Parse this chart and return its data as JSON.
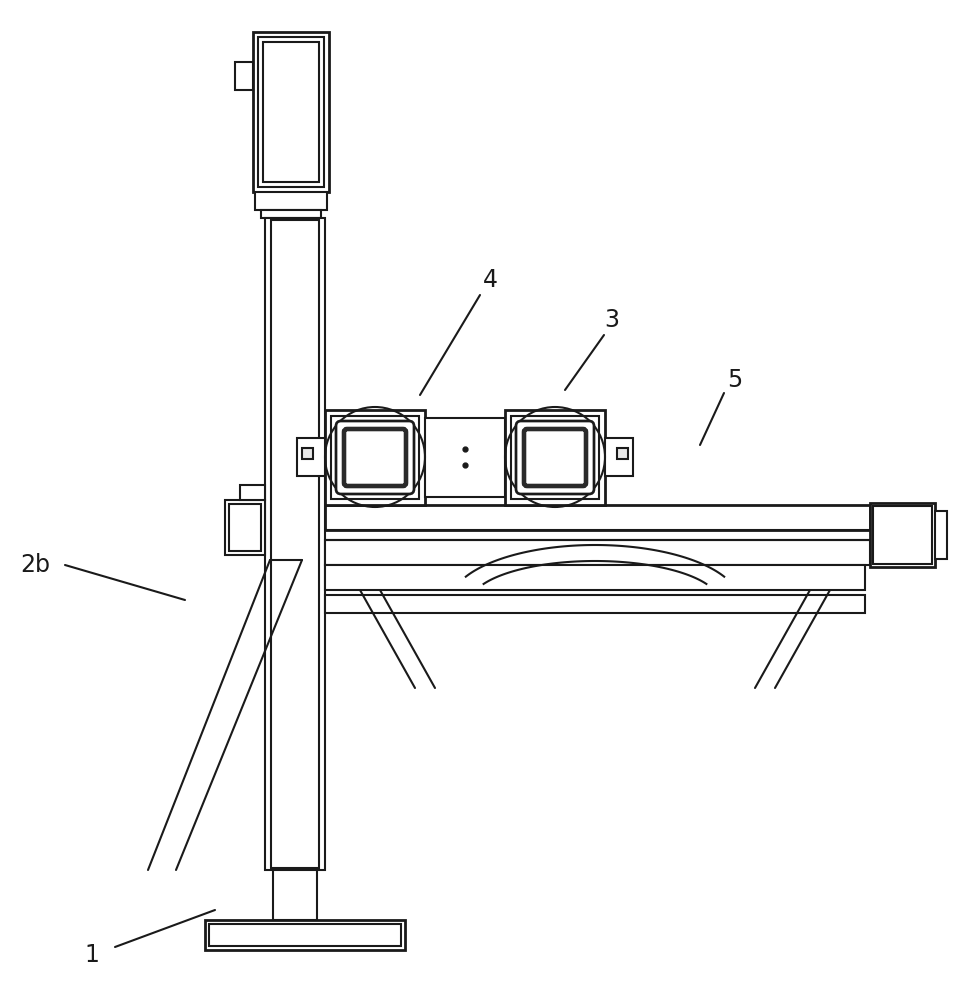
{
  "bg_color": "#ffffff",
  "line_color": "#1a1a1a",
  "lw": 1.5,
  "fig_width": 9.55,
  "fig_height": 10.0
}
